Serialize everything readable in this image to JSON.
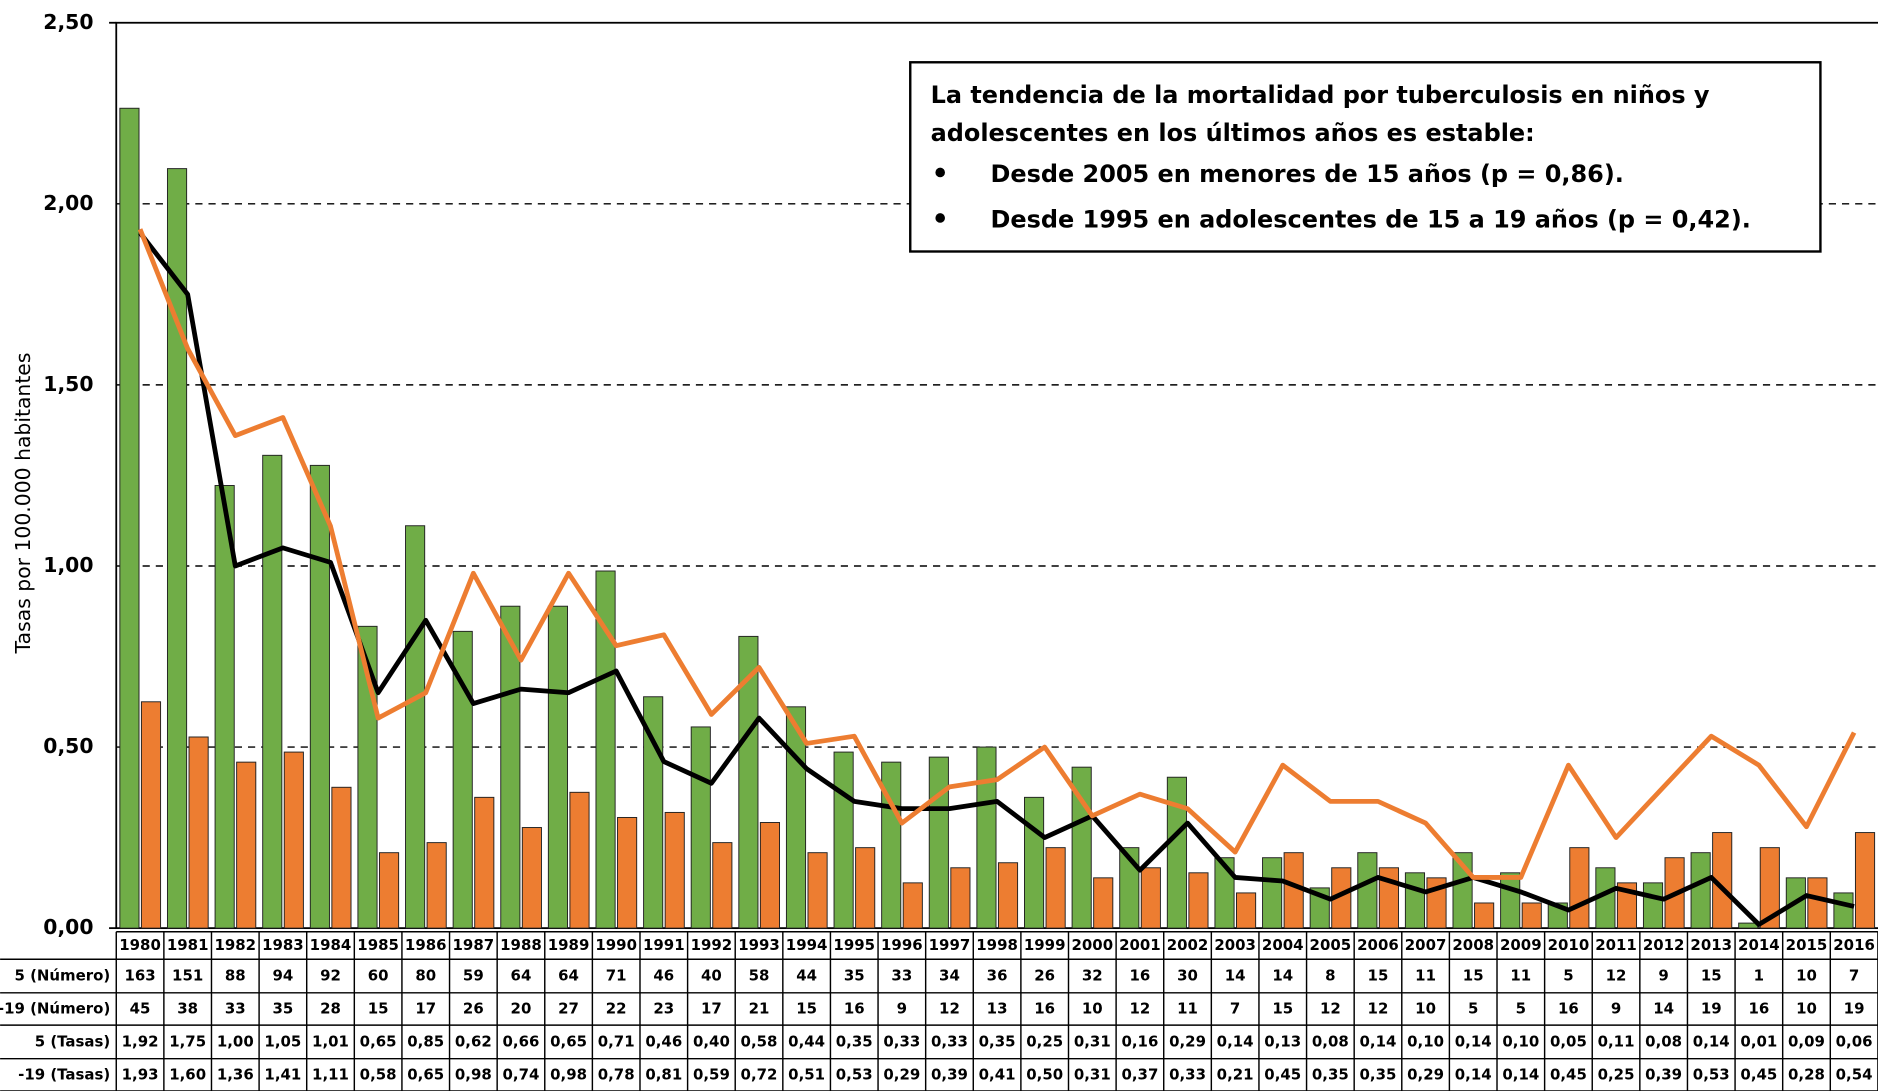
{
  "chart_data": {
    "type": "bar",
    "y_label": "Tasas por 100.000 habitantes",
    "categories": [
      "1980",
      "1981",
      "1982",
      "1983",
      "1984",
      "1985",
      "1986",
      "1987",
      "1988",
      "1989",
      "1990",
      "1991",
      "1992",
      "1993",
      "1994",
      "1995",
      "1996",
      "1997",
      "1998",
      "1999",
      "2000",
      "2001",
      "2002",
      "2003",
      "2004",
      "2005",
      "2006",
      "2007",
      "2008",
      "2009",
      "2010",
      "2011",
      "2012",
      "2013",
      "2014",
      "2015",
      "2016"
    ],
    "ylim": [
      0,
      2.5
    ],
    "yticks": [
      {
        "value": 0,
        "label": "0,00"
      },
      {
        "value": 0.5,
        "label": "0,50"
      },
      {
        "value": 1,
        "label": "1,00"
      },
      {
        "value": 1.5,
        "label": "1,50"
      },
      {
        "value": 2,
        "label": "2,00"
      },
      {
        "value": 2.5,
        "label": "2,50"
      }
    ],
    "y2lim": [
      0,
      180
    ],
    "grid": true,
    "series": [
      {
        "name": "5 (Número)",
        "type": "bar",
        "axis": "y2",
        "color": "#70ad47",
        "values": [
          163,
          151,
          88,
          94,
          92,
          60,
          80,
          59,
          64,
          64,
          71,
          46,
          40,
          58,
          44,
          35,
          33,
          34,
          36,
          26,
          32,
          16,
          30,
          14,
          14,
          8,
          15,
          11,
          15,
          11,
          5,
          12,
          9,
          15,
          1,
          10,
          7
        ]
      },
      {
        "name": "-19 (Número)",
        "type": "bar",
        "axis": "y2",
        "color": "#ed7d31",
        "values": [
          45,
          38,
          33,
          35,
          28,
          15,
          17,
          26,
          20,
          27,
          22,
          23,
          17,
          21,
          15,
          16,
          9,
          12,
          13,
          16,
          10,
          12,
          11,
          7,
          15,
          12,
          12,
          10,
          5,
          5,
          16,
          9,
          14,
          19,
          16,
          10,
          19
        ]
      },
      {
        "name": "5 (Tasas)",
        "type": "line",
        "color": "#000000",
        "values": [
          1.92,
          1.75,
          1.0,
          1.05,
          1.01,
          0.65,
          0.85,
          0.62,
          0.66,
          0.65,
          0.71,
          0.46,
          0.4,
          0.58,
          0.44,
          0.35,
          0.33,
          0.33,
          0.35,
          0.25,
          0.31,
          0.16,
          0.29,
          0.14,
          0.13,
          0.08,
          0.14,
          0.1,
          0.14,
          0.1,
          0.05,
          0.11,
          0.08,
          0.14,
          0.01,
          0.09,
          0.06
        ],
        "value_labels": [
          "1,92",
          "1,75",
          "1,00",
          "1,05",
          "1,01",
          "0,65",
          "0,85",
          "0,62",
          "0,66",
          "0,65",
          "0,71",
          "0,46",
          "0,40",
          "0,58",
          "0,44",
          "0,35",
          "0,33",
          "0,33",
          "0,35",
          "0,25",
          "0,31",
          "0,16",
          "0,29",
          "0,14",
          "0,13",
          "0,08",
          "0,14",
          "0,10",
          "0,14",
          "0,10",
          "0,05",
          "0,11",
          "0,08",
          "0,14",
          "0,01",
          "0,09",
          "0,06"
        ]
      },
      {
        "name": "-19 (Tasas)",
        "type": "line",
        "color": "#ed7d31",
        "values": [
          1.93,
          1.6,
          1.36,
          1.41,
          1.11,
          0.58,
          0.65,
          0.98,
          0.74,
          0.98,
          0.78,
          0.81,
          0.59,
          0.72,
          0.51,
          0.53,
          0.29,
          0.39,
          0.41,
          0.5,
          0.31,
          0.37,
          0.33,
          0.21,
          0.45,
          0.35,
          0.35,
          0.29,
          0.14,
          0.14,
          0.45,
          0.25,
          0.39,
          0.53,
          0.45,
          0.28,
          0.54
        ],
        "value_labels": [
          "1,93",
          "1,60",
          "1,36",
          "1,41",
          "1,11",
          "0,58",
          "0,65",
          "0,98",
          "0,74",
          "0,98",
          "0,78",
          "0,81",
          "0,59",
          "0,72",
          "0,51",
          "0,53",
          "0,29",
          "0,39",
          "0,41",
          "0,50",
          "0,31",
          "0,37",
          "0,33",
          "0,21",
          "0,45",
          "0,35",
          "0,35",
          "0,29",
          "0,14",
          "0,14",
          "0,45",
          "0,25",
          "0,39",
          "0,53",
          "0,45",
          "0,28",
          "0,54"
        ]
      }
    ],
    "annotation": {
      "lines": [
        "La tendencia de la mortalidad por tuberculosis en niños y",
        "adolescentes en los últimos años es estable:"
      ],
      "bullets": [
        "Desde 2005 en menores de 15 años (p = 0,86).",
        "Desde 1995 en adolescentes de 15 a 19 años (p = 0,42)."
      ]
    }
  }
}
